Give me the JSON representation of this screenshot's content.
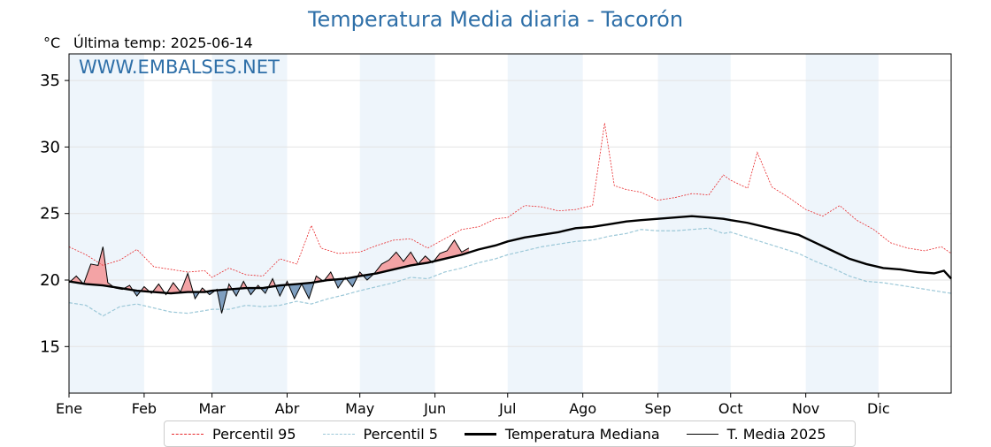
{
  "header": {
    "title": "Temperatura Media diaria - Tacorón",
    "unit": "°C",
    "last_temp": "Última temp: 2025-06-14",
    "watermark": "WWW.EMBALSES.NET"
  },
  "legend": {
    "p95": "Percentil 95",
    "p5": "Percentil 5",
    "median": "Temperatura Mediana",
    "current": "T. Media 2025"
  },
  "colors": {
    "p95": "#e8272a",
    "p5": "#9cc8d8",
    "median": "#000000",
    "current": "#000000",
    "above_fill": "#f3a3a5",
    "below_fill": "#7f9fc0",
    "month_band": "#eef5fb",
    "title": "#2e6fa8"
  },
  "chart_data": {
    "type": "line",
    "title": "Temperatura Media diaria - Tacorón",
    "ylabel": "°C",
    "xlim": [
      1,
      365
    ],
    "ylim": [
      11.5,
      37
    ],
    "y_ticks": [
      15,
      20,
      25,
      30,
      35
    ],
    "x_ticks": [
      {
        "day": 1,
        "label": "Ene"
      },
      {
        "day": 32,
        "label": "Feb"
      },
      {
        "day": 60,
        "label": "Mar"
      },
      {
        "day": 91,
        "label": "Abr"
      },
      {
        "day": 121,
        "label": "May"
      },
      {
        "day": 152,
        "label": "Jun"
      },
      {
        "day": 182,
        "label": "Jul"
      },
      {
        "day": 213,
        "label": "Ago"
      },
      {
        "day": 244,
        "label": "Sep"
      },
      {
        "day": 274,
        "label": "Oct"
      },
      {
        "day": 305,
        "label": "Nov"
      },
      {
        "day": 335,
        "label": "Dic"
      }
    ],
    "grid": true,
    "legend_position": "bottom",
    "shaded_months": [
      [
        1,
        32
      ],
      [
        60,
        91
      ],
      [
        121,
        152
      ],
      [
        182,
        213
      ],
      [
        244,
        274
      ],
      [
        305,
        335
      ]
    ],
    "series": [
      {
        "name": "Percentil 95",
        "key": "p95",
        "points": [
          [
            1,
            22.5
          ],
          [
            8,
            21.9
          ],
          [
            15,
            21.1
          ],
          [
            22,
            21.5
          ],
          [
            29,
            22.3
          ],
          [
            36,
            21.0
          ],
          [
            43,
            20.8
          ],
          [
            50,
            20.6
          ],
          [
            57,
            20.7
          ],
          [
            60,
            20.2
          ],
          [
            67,
            20.9
          ],
          [
            74,
            20.4
          ],
          [
            81,
            20.3
          ],
          [
            88,
            21.6
          ],
          [
            95,
            21.2
          ],
          [
            101,
            24.1
          ],
          [
            105,
            22.4
          ],
          [
            112,
            22.0
          ],
          [
            121,
            22.1
          ],
          [
            128,
            22.6
          ],
          [
            135,
            23.0
          ],
          [
            142,
            23.1
          ],
          [
            149,
            22.4
          ],
          [
            156,
            23.1
          ],
          [
            163,
            23.8
          ],
          [
            170,
            24.0
          ],
          [
            177,
            24.6
          ],
          [
            182,
            24.7
          ],
          [
            189,
            25.6
          ],
          [
            196,
            25.5
          ],
          [
            203,
            25.2
          ],
          [
            210,
            25.3
          ],
          [
            217,
            25.6
          ],
          [
            222,
            31.8
          ],
          [
            226,
            27.1
          ],
          [
            231,
            26.8
          ],
          [
            237,
            26.6
          ],
          [
            244,
            26.0
          ],
          [
            251,
            26.2
          ],
          [
            258,
            26.5
          ],
          [
            265,
            26.4
          ],
          [
            271,
            27.9
          ],
          [
            274,
            27.5
          ],
          [
            281,
            26.9
          ],
          [
            285,
            29.6
          ],
          [
            291,
            27.0
          ],
          [
            298,
            26.2
          ],
          [
            305,
            25.3
          ],
          [
            312,
            24.8
          ],
          [
            319,
            25.6
          ],
          [
            326,
            24.5
          ],
          [
            333,
            23.8
          ],
          [
            340,
            22.8
          ],
          [
            347,
            22.4
          ],
          [
            354,
            22.2
          ],
          [
            361,
            22.5
          ],
          [
            365,
            22.0
          ]
        ]
      },
      {
        "name": "Percentil 5",
        "key": "p5",
        "points": [
          [
            1,
            18.3
          ],
          [
            8,
            18.1
          ],
          [
            15,
            17.3
          ],
          [
            22,
            18.0
          ],
          [
            29,
            18.2
          ],
          [
            36,
            17.9
          ],
          [
            43,
            17.6
          ],
          [
            50,
            17.5
          ],
          [
            57,
            17.7
          ],
          [
            60,
            17.8
          ],
          [
            67,
            17.8
          ],
          [
            74,
            18.1
          ],
          [
            81,
            18.0
          ],
          [
            88,
            18.1
          ],
          [
            95,
            18.4
          ],
          [
            101,
            18.2
          ],
          [
            108,
            18.6
          ],
          [
            115,
            18.9
          ],
          [
            121,
            19.2
          ],
          [
            128,
            19.5
          ],
          [
            135,
            19.8
          ],
          [
            142,
            20.2
          ],
          [
            149,
            20.1
          ],
          [
            156,
            20.6
          ],
          [
            163,
            20.9
          ],
          [
            170,
            21.3
          ],
          [
            177,
            21.6
          ],
          [
            182,
            21.9
          ],
          [
            189,
            22.2
          ],
          [
            196,
            22.5
          ],
          [
            203,
            22.7
          ],
          [
            210,
            22.9
          ],
          [
            217,
            23.0
          ],
          [
            224,
            23.3
          ],
          [
            231,
            23.5
          ],
          [
            237,
            23.8
          ],
          [
            244,
            23.7
          ],
          [
            251,
            23.7
          ],
          [
            258,
            23.8
          ],
          [
            265,
            23.9
          ],
          [
            271,
            23.5
          ],
          [
            274,
            23.6
          ],
          [
            281,
            23.2
          ],
          [
            288,
            22.8
          ],
          [
            295,
            22.4
          ],
          [
            302,
            22.0
          ],
          [
            309,
            21.4
          ],
          [
            316,
            20.9
          ],
          [
            323,
            20.3
          ],
          [
            330,
            19.9
          ],
          [
            337,
            19.8
          ],
          [
            344,
            19.6
          ],
          [
            351,
            19.4
          ],
          [
            358,
            19.2
          ],
          [
            365,
            19.0
          ]
        ]
      },
      {
        "name": "Temperatura Mediana",
        "key": "median",
        "points": [
          [
            1,
            19.9
          ],
          [
            8,
            19.7
          ],
          [
            15,
            19.6
          ],
          [
            22,
            19.4
          ],
          [
            29,
            19.2
          ],
          [
            36,
            19.1
          ],
          [
            43,
            19.0
          ],
          [
            50,
            19.1
          ],
          [
            57,
            19.1
          ],
          [
            60,
            19.2
          ],
          [
            67,
            19.3
          ],
          [
            74,
            19.4
          ],
          [
            81,
            19.4
          ],
          [
            88,
            19.6
          ],
          [
            95,
            19.7
          ],
          [
            101,
            19.8
          ],
          [
            108,
            20.0
          ],
          [
            115,
            20.1
          ],
          [
            121,
            20.3
          ],
          [
            128,
            20.5
          ],
          [
            135,
            20.8
          ],
          [
            142,
            21.1
          ],
          [
            149,
            21.3
          ],
          [
            156,
            21.6
          ],
          [
            163,
            21.9
          ],
          [
            170,
            22.3
          ],
          [
            177,
            22.6
          ],
          [
            182,
            22.9
          ],
          [
            189,
            23.2
          ],
          [
            196,
            23.4
          ],
          [
            203,
            23.6
          ],
          [
            210,
            23.9
          ],
          [
            217,
            24.0
          ],
          [
            224,
            24.2
          ],
          [
            231,
            24.4
          ],
          [
            237,
            24.5
          ],
          [
            244,
            24.6
          ],
          [
            251,
            24.7
          ],
          [
            258,
            24.8
          ],
          [
            265,
            24.7
          ],
          [
            271,
            24.6
          ],
          [
            274,
            24.5
          ],
          [
            281,
            24.3
          ],
          [
            288,
            24.0
          ],
          [
            295,
            23.7
          ],
          [
            302,
            23.4
          ],
          [
            309,
            22.8
          ],
          [
            316,
            22.2
          ],
          [
            323,
            21.6
          ],
          [
            330,
            21.2
          ],
          [
            337,
            20.9
          ],
          [
            344,
            20.8
          ],
          [
            351,
            20.6
          ],
          [
            358,
            20.5
          ],
          [
            362,
            20.7
          ],
          [
            365,
            20.1
          ]
        ]
      },
      {
        "name": "T. Media 2025",
        "key": "current",
        "points": [
          [
            1,
            19.8
          ],
          [
            4,
            20.3
          ],
          [
            7,
            19.7
          ],
          [
            10,
            21.2
          ],
          [
            13,
            21.1
          ],
          [
            15,
            22.5
          ],
          [
            17,
            19.8
          ],
          [
            20,
            19.4
          ],
          [
            23,
            19.3
          ],
          [
            26,
            19.6
          ],
          [
            29,
            18.8
          ],
          [
            32,
            19.5
          ],
          [
            35,
            19.0
          ],
          [
            38,
            19.7
          ],
          [
            41,
            18.9
          ],
          [
            44,
            19.8
          ],
          [
            47,
            19.1
          ],
          [
            50,
            20.5
          ],
          [
            53,
            18.6
          ],
          [
            56,
            19.4
          ],
          [
            59,
            18.9
          ],
          [
            62,
            19.3
          ],
          [
            64,
            17.5
          ],
          [
            67,
            19.7
          ],
          [
            70,
            18.8
          ],
          [
            73,
            19.9
          ],
          [
            76,
            18.9
          ],
          [
            79,
            19.6
          ],
          [
            82,
            19.0
          ],
          [
            85,
            20.1
          ],
          [
            88,
            18.8
          ],
          [
            91,
            19.9
          ],
          [
            94,
            18.6
          ],
          [
            97,
            19.7
          ],
          [
            100,
            18.6
          ],
          [
            103,
            20.3
          ],
          [
            106,
            19.9
          ],
          [
            109,
            20.6
          ],
          [
            112,
            19.4
          ],
          [
            115,
            20.2
          ],
          [
            118,
            19.5
          ],
          [
            121,
            20.6
          ],
          [
            124,
            20.0
          ],
          [
            127,
            20.5
          ],
          [
            130,
            21.2
          ],
          [
            133,
            21.5
          ],
          [
            136,
            22.1
          ],
          [
            139,
            21.4
          ],
          [
            142,
            22.1
          ],
          [
            145,
            21.2
          ],
          [
            148,
            21.8
          ],
          [
            151,
            21.3
          ],
          [
            154,
            22.0
          ],
          [
            157,
            22.2
          ],
          [
            160,
            23.0
          ],
          [
            163,
            22.1
          ],
          [
            166,
            22.4
          ]
        ]
      }
    ]
  }
}
